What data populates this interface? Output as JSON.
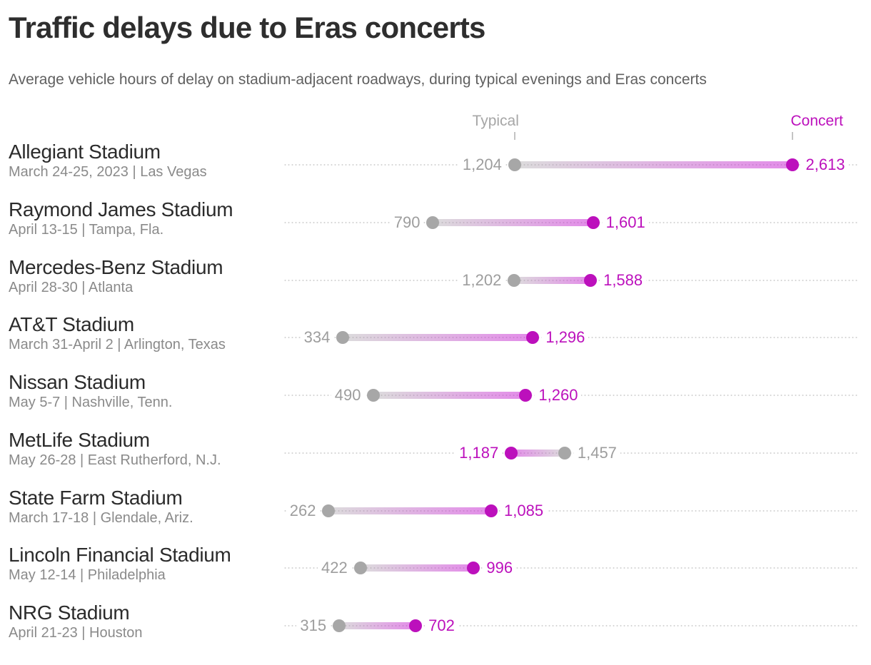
{
  "chart_data": {
    "type": "dumbbell",
    "title": "Traffic delays due to Eras concerts",
    "subtitle": "Average vehicle hours of delay on stadium-adjacent roadways, during typical evenings and Eras concerts",
    "unit": "vehicle hours of delay",
    "legend": {
      "typical_label": "Typical",
      "concert_label": "Concert"
    },
    "legend_position": "top, ticks aligned to first row values",
    "grid": "dotted horizontal line per row",
    "x_axis": {
      "min": 0,
      "max": 2900,
      "ticks_visible": false
    },
    "series": [
      "Typical",
      "Concert"
    ],
    "rows": [
      {
        "stadium": "Allegiant Stadium",
        "detail": "March 24-25, 2023 | Las Vegas",
        "typical": 1204,
        "concert": 2613,
        "typical_label": "1,204",
        "concert_label": "2,613"
      },
      {
        "stadium": "Raymond James Stadium",
        "detail": "April 13-15 | Tampa, Fla.",
        "typical": 790,
        "concert": 1601,
        "typical_label": "790",
        "concert_label": "1,601"
      },
      {
        "stadium": "Mercedes-Benz Stadium",
        "detail": "April 28-30 | Atlanta",
        "typical": 1202,
        "concert": 1588,
        "typical_label": "1,202",
        "concert_label": "1,588"
      },
      {
        "stadium": "AT&T Stadium",
        "detail": "March 31-April 2 | Arlington, Texas",
        "typical": 334,
        "concert": 1296,
        "typical_label": "334",
        "concert_label": "1,296"
      },
      {
        "stadium": "Nissan Stadium",
        "detail": "May 5-7 | Nashville, Tenn.",
        "typical": 490,
        "concert": 1260,
        "typical_label": "490",
        "concert_label": "1,260"
      },
      {
        "stadium": "MetLife Stadium",
        "detail": "May 26-28 | East Rutherford, N.J.",
        "typical": 1457,
        "concert": 1187,
        "typical_label": "1,457",
        "concert_label": "1,187"
      },
      {
        "stadium": "State Farm Stadium",
        "detail": "March 17-18 | Glendale, Ariz.",
        "typical": 262,
        "concert": 1085,
        "typical_label": "262",
        "concert_label": "1,085"
      },
      {
        "stadium": "Lincoln Financial Stadium",
        "detail": "May 12-14 | Philadelphia",
        "typical": 422,
        "concert": 996,
        "typical_label": "422",
        "concert_label": "996"
      },
      {
        "stadium": "NRG Stadium",
        "detail": "April 21-23 | Houston",
        "typical": 315,
        "concert": 702,
        "typical_label": "315",
        "concert_label": "702"
      }
    ]
  },
  "colors": {
    "concert": "#bc10bc",
    "typical_dot": "#a7a7a7",
    "typical_text": "#9d9d9d",
    "bar_typical_end": "rgba(172,172,172,0.42)",
    "bar_concert_end": "rgba(201,34,212,0.52)",
    "gridline": "#d4d4d4",
    "legend_tick": "#c4c4c4",
    "title_text": "#2e2e2e",
    "subtitle_text": "#606060"
  }
}
